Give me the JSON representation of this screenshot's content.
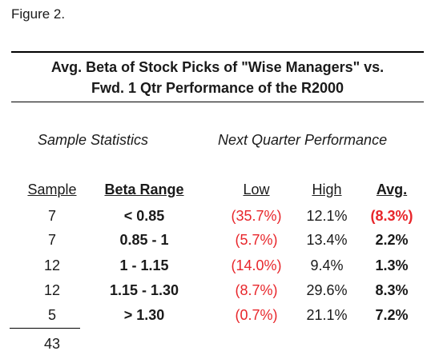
{
  "figure_label": "Figure 2.",
  "title": {
    "line1": "Avg. Beta of Stock Picks of \"Wise Managers\" vs.",
    "line2": "Fwd. 1 Qtr Performance of the R2000"
  },
  "sections": {
    "left": "Sample Statistics",
    "right": "Next Quarter Performance"
  },
  "headers": {
    "sample": "Sample",
    "beta_range": "Beta Range",
    "low": "Low",
    "high": "High",
    "avg": "Avg."
  },
  "rows": [
    {
      "sample": "7",
      "beta_range": "< 0.85",
      "low": "(35.7%)",
      "high": "12.1%",
      "avg": "(8.3%)",
      "avg_negative": true
    },
    {
      "sample": "7",
      "beta_range": "0.85 - 1",
      "low": "(5.7%)",
      "high": "13.4%",
      "avg": "2.2%",
      "avg_negative": false
    },
    {
      "sample": "12",
      "beta_range": "1 - 1.15",
      "low": "(14.0%)",
      "high": "9.4%",
      "avg": "1.3%",
      "avg_negative": false
    },
    {
      "sample": "12",
      "beta_range": "1.15 - 1.30",
      "low": "(8.7%)",
      "high": "29.6%",
      "avg": "8.3%",
      "avg_negative": false
    },
    {
      "sample": "5",
      "beta_range": "> 1.30",
      "low": "(0.7%)",
      "high": "21.1%",
      "avg": "7.2%",
      "avg_negative": false
    }
  ],
  "total_sample": "43",
  "colors": {
    "negative": "#e8262b",
    "text": "#1a1a1a"
  }
}
